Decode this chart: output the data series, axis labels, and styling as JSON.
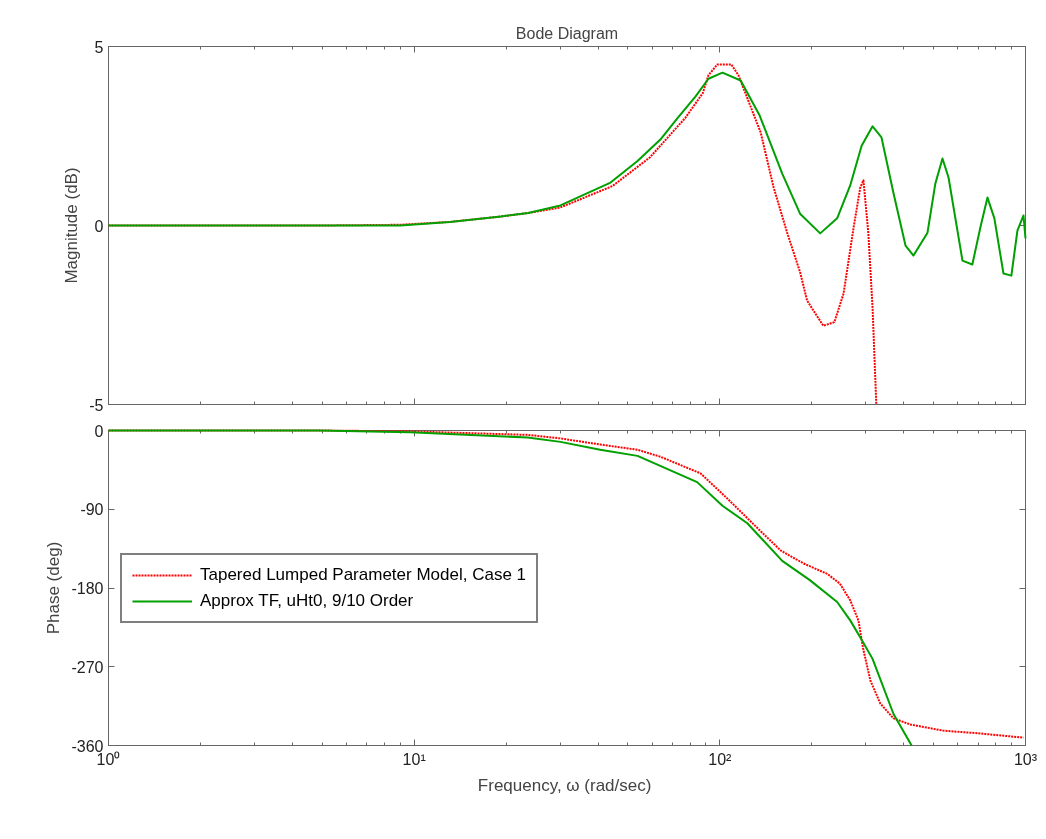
{
  "chart_data": [
    {
      "type": "line",
      "title": "Bode Diagram",
      "ylabel": "Magnitude (dB)",
      "log": "x",
      "xlim": [
        1,
        1000
      ],
      "xticks": [
        {
          "value": 1,
          "label": null
        },
        {
          "value": 10,
          "label": null
        },
        {
          "value": 100,
          "label": null
        },
        {
          "value": 1000,
          "label": null
        }
      ],
      "ylim": [
        -5,
        5
      ],
      "yticks": [
        -5,
        0,
        5
      ],
      "tick_labels": "y",
      "grid": false,
      "legend": false,
      "series": [
        {
          "color": "#ff0000",
          "line_style": "dotted",
          "x": [
            1,
            5,
            9,
            13.1,
            19.2,
            23.6,
            30,
            44.5,
            59,
            77,
            88,
            91.8,
            98.2,
            109,
            115,
            136,
            150,
            166,
            183,
            193,
            218,
            237,
            254,
            274,
            288,
            295,
            306,
            316,
            325
          ],
          "values": [
            0,
            0,
            0.02,
            0.1,
            0.25,
            0.35,
            0.5,
            1.1,
            1.9,
            3.0,
            3.7,
            4.2,
            4.5,
            4.5,
            4.2,
            2.6,
            1.06,
            -0.2,
            -1.3,
            -2.1,
            -2.8,
            -2.7,
            -1.9,
            -0.05,
            1.06,
            1.26,
            -0.2,
            -2.3,
            -5
          ]
        },
        {
          "color": "#00a000",
          "line_style": "solid",
          "x": [
            1,
            5,
            9,
            13.1,
            19.2,
            23.6,
            30.1,
            43.9,
            53.8,
            63.9,
            72.7,
            83.2,
            91.8,
            102,
            117,
            135,
            160,
            183,
            213,
            242,
            267,
            291,
            316,
            338,
            370,
            405,
            430,
            478,
            507,
            535,
            560,
            622,
            670,
            712,
            751,
            791,
            847,
            899,
            941,
            985,
            1000
          ],
          "values": [
            0,
            0,
            0,
            0.1,
            0.25,
            0.35,
            0.56,
            1.2,
            1.8,
            2.4,
            3.0,
            3.6,
            4.1,
            4.27,
            4.05,
            3.07,
            1.45,
            0.33,
            -0.22,
            0.2,
            1.12,
            2.23,
            2.77,
            2.46,
            0.9,
            -0.56,
            -0.84,
            -0.2,
            1.17,
            1.87,
            1.34,
            -0.98,
            -1.09,
            -0.05,
            0.78,
            0.2,
            -1.34,
            -1.4,
            -0.14,
            0.28,
            -0.36
          ]
        }
      ]
    },
    {
      "type": "line",
      "xlabel": "Frequency, ω  (rad/sec)",
      "ylabel": "Phase (deg)",
      "log": "x",
      "xlim": [
        1,
        1000
      ],
      "xticks": [
        {
          "value": 1,
          "label": "10⁰"
        },
        {
          "value": 10,
          "label": "10¹"
        },
        {
          "value": 100,
          "label": "10²"
        },
        {
          "value": 1000,
          "label": "10³"
        }
      ],
      "ylim": [
        -360,
        0
      ],
      "yticks": [
        -360,
        -270,
        -180,
        -90,
        0
      ],
      "grid": false,
      "legend": "left",
      "series": [
        {
          "name": "Tapered Lumped Parameter Model, Case 1",
          "color": "#ff0000",
          "line_style": "dotted",
          "x": [
            1,
            4.86,
            9.7,
            23.5,
            30,
            40.6,
            53.8,
            63.9,
            86.5,
            106,
            135,
            158,
            188,
            225,
            247,
            267,
            284,
            295,
            311,
            335,
            370,
            420,
            537,
            697,
            985
          ],
          "values": [
            0,
            0,
            -1,
            -5,
            -9,
            -16,
            -22,
            -30,
            -49,
            -78,
            -114,
            -137,
            -152,
            -164,
            -175,
            -194,
            -217,
            -251,
            -286,
            -312,
            -329,
            -336,
            -343,
            -346,
            -351
          ]
        },
        {
          "name": "Approx TF, uHt0, 9/10 Order",
          "color": "#00a000",
          "line_style": "solid",
          "x": [
            1,
            4.86,
            9.7,
            23.5,
            30.1,
            40.6,
            53.8,
            84.3,
            102,
            123,
            160,
            197,
            242,
            267,
            292,
            316,
            370,
            424
          ],
          "values": [
            0,
            0,
            -2,
            -8,
            -13,
            -22,
            -29,
            -59,
            -86,
            -106,
            -149,
            -171,
            -196,
            -217,
            -240,
            -261,
            -324,
            -360
          ]
        }
      ]
    }
  ]
}
